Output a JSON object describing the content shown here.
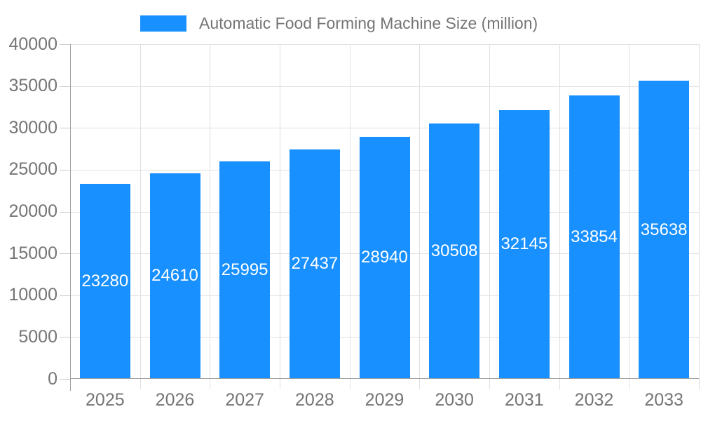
{
  "chart_data": {
    "type": "bar",
    "title": "Automatic Food Forming Machine Size (million)",
    "categories": [
      "2025",
      "2026",
      "2027",
      "2028",
      "2029",
      "2030",
      "2031",
      "2032",
      "2033"
    ],
    "values": [
      23280,
      24610,
      25995,
      27437,
      28940,
      30508,
      32145,
      33854,
      35638
    ],
    "xlabel": "",
    "ylabel": "",
    "ylim": [
      0,
      40000
    ],
    "yticks": [
      0,
      5000,
      10000,
      15000,
      20000,
      25000,
      30000,
      35000,
      40000
    ],
    "grid": true,
    "legend_position": "top",
    "legend_label": "Automatic Food Forming Machine Size (million)",
    "bar_value_labels": [
      "23280",
      "24610",
      "25995",
      "27437",
      "28940",
      "30508",
      "32145",
      "33854",
      "35638"
    ],
    "ytick_labels": [
      "0",
      "5000",
      "10000",
      "15000",
      "20000",
      "25000",
      "30000",
      "35000",
      "40000"
    ]
  },
  "colors": {
    "bar": "#1890FF",
    "bar_label_text": "#ffffff",
    "grid": "#e0e0e0",
    "axis_line": "#9e9e9e",
    "tick": "#cccccc",
    "axis_text": "#757575",
    "legend_text": "#757575",
    "background": "#ffffff"
  }
}
